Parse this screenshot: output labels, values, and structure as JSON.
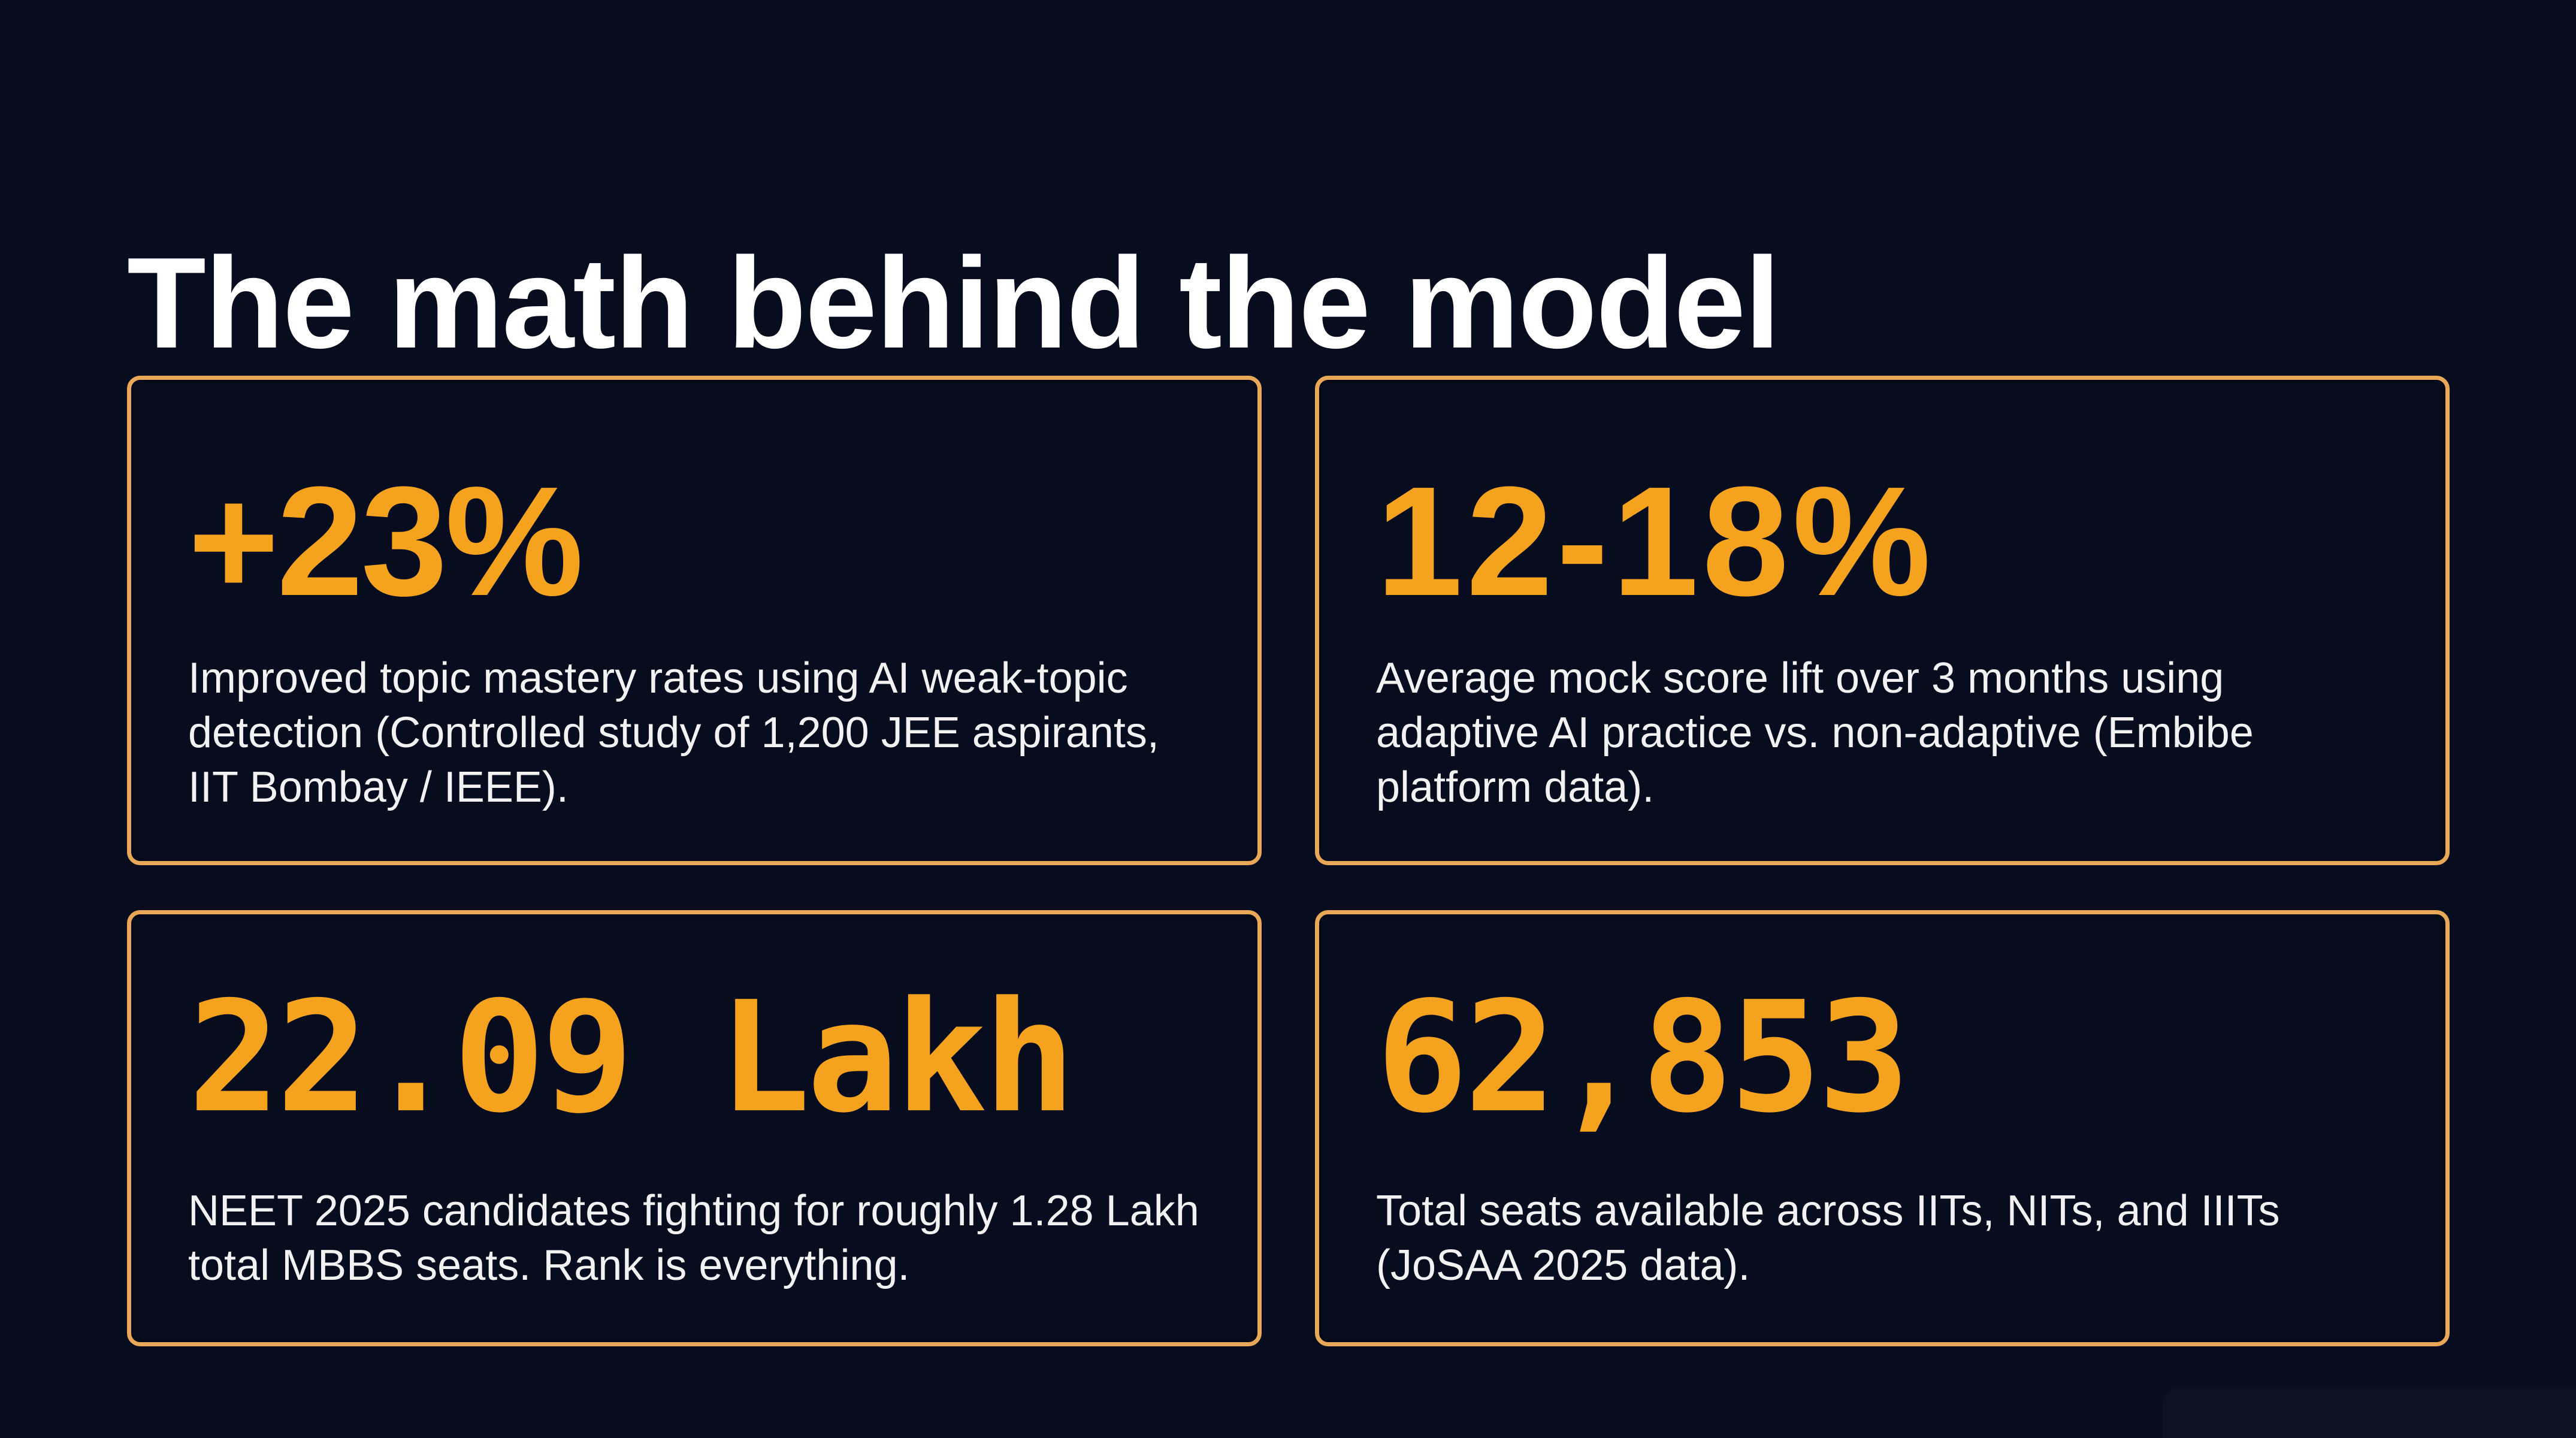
{
  "slide": {
    "title": "The math behind the model",
    "accent_color": "#f5a21e",
    "border_color": "#e8a858",
    "background_color": "#070c1f",
    "cards": [
      {
        "stat": "+23%",
        "description": "Improved topic mastery rates using AI weak-topic detection (Controlled study of 1,200 JEE aspirants, IIT Bombay / IEEE)."
      },
      {
        "stat": "12-18%",
        "description": "Average mock score lift over 3 months using adaptive AI practice vs. non-adaptive (Embibe platform data)."
      },
      {
        "stat": "22.09 Lakh",
        "description": "NEET 2025 candidates fighting for roughly 1.28 Lakh total MBBS seats. Rank is everything."
      },
      {
        "stat": "62,853",
        "description": "Total seats available across IITs, NITs, and IIITs (JoSAA 2025 data)."
      }
    ]
  }
}
